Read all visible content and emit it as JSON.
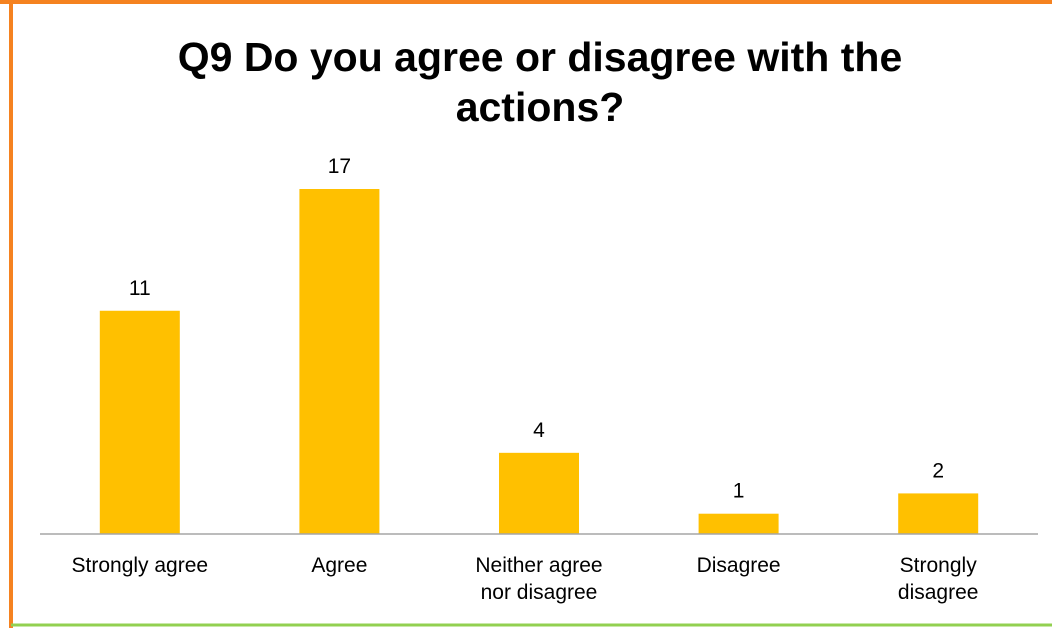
{
  "colors": {
    "bar": "#FFC000",
    "frame_left": "#F58220",
    "frame_top": "#F58220",
    "frame_bottom": "#92D050",
    "axis": "#A6A6A6"
  },
  "chart_data": {
    "type": "bar",
    "title": "Q9 Do you agree or disagree with the actions?",
    "categories": [
      "Strongly agree",
      "Agree",
      "Neither agree nor disagree",
      "Disagree",
      "Strongly disagree"
    ],
    "category_labels": [
      "Strongly agree",
      "Agree",
      "Neither agree\nnor disagree",
      "Disagree",
      "Strongly\ndisagree"
    ],
    "values": [
      11,
      17,
      4,
      1,
      2
    ],
    "data_labels": [
      "11",
      "17",
      "4",
      "1",
      "2"
    ],
    "xlabel": "",
    "ylabel": "",
    "ylim": [
      0,
      17
    ],
    "grid": false,
    "legend": "none"
  }
}
